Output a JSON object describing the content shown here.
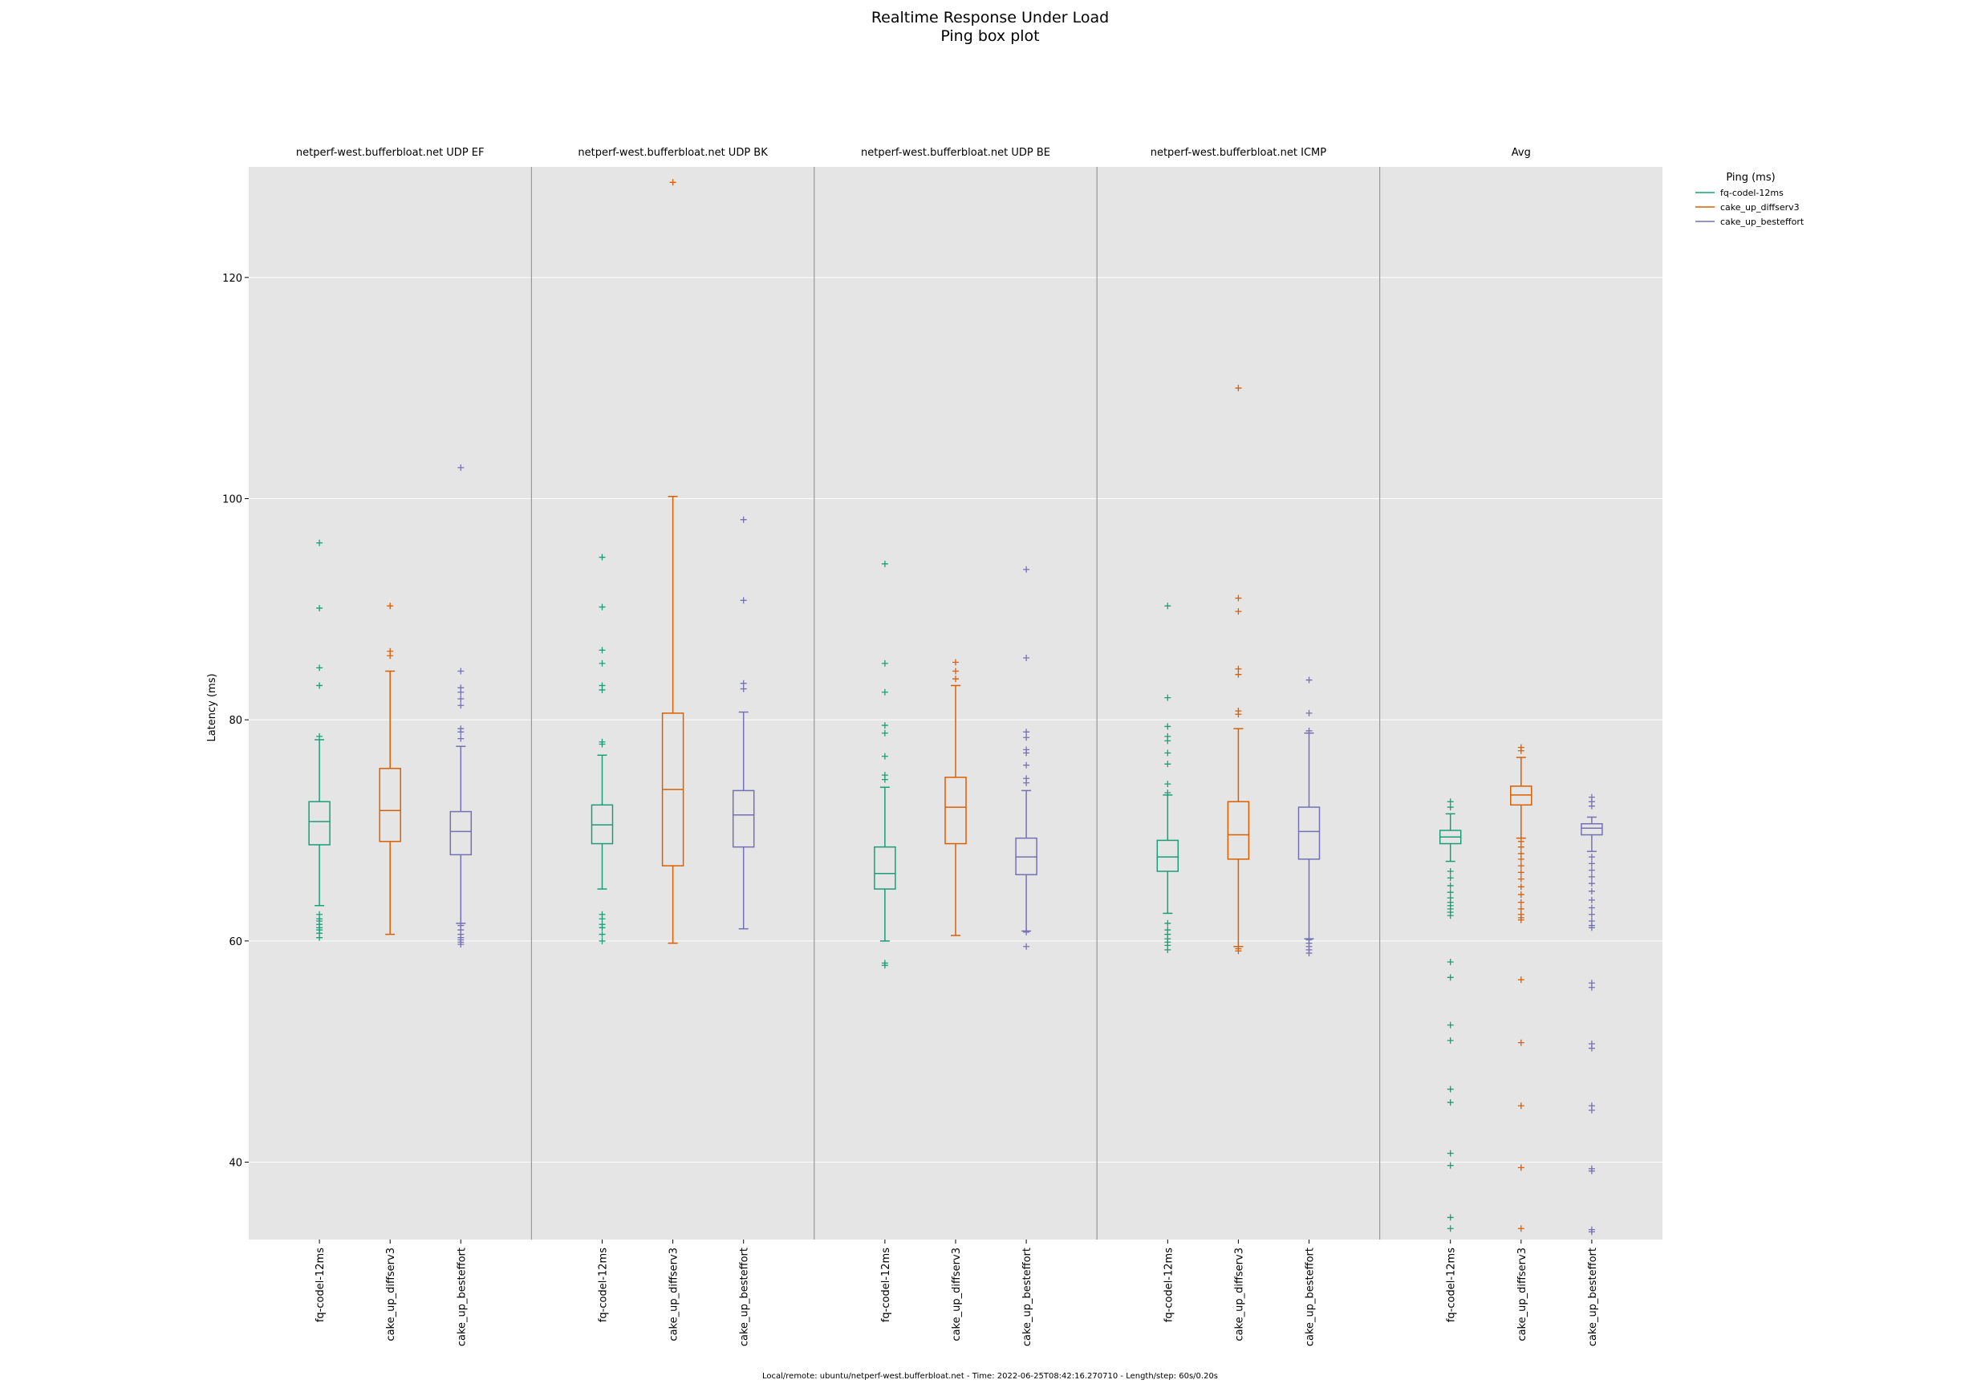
{
  "colors": {
    "fq-codel-12ms": "#1b9e77",
    "cake_up_diffserv3": "#d95f02",
    "cake_up_besteffort": "#7570b3",
    "panel_bg": "#e5e5e5",
    "grid": "#ffffff",
    "divider": "#999999"
  },
  "chart_data": {
    "type": "box",
    "title": "Realtime Response Under Load",
    "subtitle": "Ping box plot",
    "ylabel": "Latency (ms)",
    "ylim": [
      33,
      130
    ],
    "yticks": [
      40,
      60,
      80,
      100,
      120
    ],
    "grid": true,
    "legend": {
      "title": "Ping (ms)",
      "placement": "top-right outside",
      "entries": [
        "fq-codel-12ms",
        "cake_up_diffserv3",
        "cake_up_besteffort"
      ]
    },
    "footer": "Local/remote: ubuntu/netperf-west.bufferbloat.net - Time: 2022-06-25T08:42:16.270710 - Length/step: 60s/0.20s",
    "panels": [
      {
        "title": "netperf-west.bufferbloat.net UDP EF",
        "boxes": [
          {
            "series": "fq-codel-12ms",
            "whislo": 63.2,
            "q1": 68.7,
            "med": 70.8,
            "q3": 72.6,
            "whishi": 78.2,
            "fliers": [
              96.0,
              90.1,
              84.7,
              83.1,
              78.5,
              62.4,
              62.0,
              61.8,
              61.5,
              61.2,
              61.0,
              60.7,
              60.3
            ]
          },
          {
            "series": "cake_up_diffserv3",
            "whislo": 60.6,
            "q1": 69.0,
            "med": 71.8,
            "q3": 75.6,
            "whishi": 84.4,
            "fliers": [
              90.3,
              86.2,
              85.8
            ]
          },
          {
            "series": "cake_up_besteffort",
            "whislo": 61.6,
            "q1": 67.8,
            "med": 69.9,
            "q3": 71.7,
            "whishi": 77.6,
            "fliers": [
              102.8,
              84.4,
              82.9,
              82.5,
              81.9,
              81.3,
              79.2,
              78.9,
              78.3,
              61.4,
              61.0,
              60.6,
              60.3,
              60.1,
              59.9,
              59.7
            ]
          }
        ]
      },
      {
        "title": "netperf-west.bufferbloat.net UDP BK",
        "boxes": [
          {
            "series": "fq-codel-12ms",
            "whislo": 64.7,
            "q1": 68.8,
            "med": 70.5,
            "q3": 72.3,
            "whishi": 76.8,
            "fliers": [
              94.7,
              90.2,
              86.3,
              85.1,
              83.1,
              82.7,
              78.0,
              77.8,
              62.4,
              62.0,
              61.5,
              61.2,
              60.6,
              60.0
            ]
          },
          {
            "series": "cake_up_diffserv3",
            "whislo": 59.8,
            "q1": 66.8,
            "med": 73.7,
            "q3": 80.6,
            "whishi": 100.2,
            "fliers": [
              128.6
            ]
          },
          {
            "series": "cake_up_besteffort",
            "whislo": 61.1,
            "q1": 68.5,
            "med": 71.4,
            "q3": 73.6,
            "whishi": 80.7,
            "fliers": [
              98.1,
              90.8,
              83.3,
              82.8
            ]
          }
        ]
      },
      {
        "title": "netperf-west.bufferbloat.net UDP BE",
        "boxes": [
          {
            "series": "fq-codel-12ms",
            "whislo": 60.0,
            "q1": 64.7,
            "med": 66.1,
            "q3": 68.5,
            "whishi": 73.9,
            "fliers": [
              94.1,
              85.1,
              82.5,
              79.5,
              78.8,
              76.7,
              75.0,
              74.6,
              58.0,
              57.8
            ]
          },
          {
            "series": "cake_up_diffserv3",
            "whislo": 60.5,
            "q1": 68.8,
            "med": 72.1,
            "q3": 74.8,
            "whishi": 83.1,
            "fliers": [
              85.2,
              84.4,
              83.7
            ]
          },
          {
            "series": "cake_up_besteffort",
            "whislo": 60.9,
            "q1": 66.0,
            "med": 67.6,
            "q3": 69.3,
            "whishi": 73.6,
            "fliers": [
              93.6,
              85.6,
              78.9,
              78.4,
              77.3,
              77.0,
              75.9,
              74.7,
              74.3,
              60.8,
              59.5
            ]
          }
        ]
      },
      {
        "title": "netperf-west.bufferbloat.net ICMP",
        "boxes": [
          {
            "series": "fq-codel-12ms",
            "whislo": 62.5,
            "q1": 66.3,
            "med": 67.6,
            "q3": 69.1,
            "whishi": 73.2,
            "fliers": [
              90.3,
              82.0,
              79.4,
              78.5,
              78.1,
              77.0,
              76.0,
              74.2,
              73.4,
              61.6,
              61.0,
              60.6,
              60.2,
              59.9,
              59.6,
              59.2
            ]
          },
          {
            "series": "cake_up_diffserv3",
            "whislo": 59.5,
            "q1": 67.4,
            "med": 69.6,
            "q3": 72.6,
            "whishi": 79.2,
            "fliers": [
              110.0,
              91.0,
              89.8,
              84.6,
              84.1,
              80.8,
              80.5,
              59.3,
              59.1
            ]
          },
          {
            "series": "cake_up_besteffort",
            "whislo": 60.2,
            "q1": 67.4,
            "med": 69.9,
            "q3": 72.1,
            "whishi": 78.8,
            "fliers": [
              83.6,
              80.6,
              79.0,
              60.1,
              59.8,
              59.5,
              59.2,
              58.9
            ]
          }
        ]
      },
      {
        "title": "Avg",
        "boxes": [
          {
            "series": "fq-codel-12ms",
            "whislo": 67.2,
            "q1": 68.8,
            "med": 69.4,
            "q3": 70.0,
            "whishi": 71.5,
            "fliers": [
              72.6,
              72.1,
              66.3,
              65.7,
              65.0,
              64.4,
              63.9,
              63.5,
              63.2,
              62.9,
              62.6,
              62.3,
              58.1,
              56.7,
              52.4,
              51.0,
              46.6,
              45.4,
              40.8,
              39.7,
              35.0,
              34.0
            ]
          },
          {
            "series": "cake_up_diffserv3",
            "whislo": 69.3,
            "q1": 72.3,
            "med": 73.2,
            "q3": 74.0,
            "whishi": 76.6,
            "fliers": [
              77.5,
              77.2,
              69.0,
              68.5,
              67.9,
              67.4,
              66.8,
              66.2,
              65.6,
              64.9,
              64.2,
              63.5,
              62.9,
              62.4,
              62.1,
              61.9,
              56.5,
              50.8,
              45.1,
              39.5,
              34.0
            ]
          },
          {
            "series": "cake_up_besteffort",
            "whislo": 68.1,
            "q1": 69.6,
            "med": 70.2,
            "q3": 70.6,
            "whishi": 71.2,
            "fliers": [
              73.0,
              72.6,
              72.2,
              67.6,
              67.0,
              66.4,
              65.8,
              65.2,
              64.5,
              63.7,
              63.0,
              62.4,
              61.8,
              61.4,
              61.2,
              56.2,
              55.8,
              50.7,
              50.3,
              45.1,
              44.7,
              39.4,
              39.2,
              33.9,
              33.7
            ]
          }
        ]
      }
    ]
  }
}
